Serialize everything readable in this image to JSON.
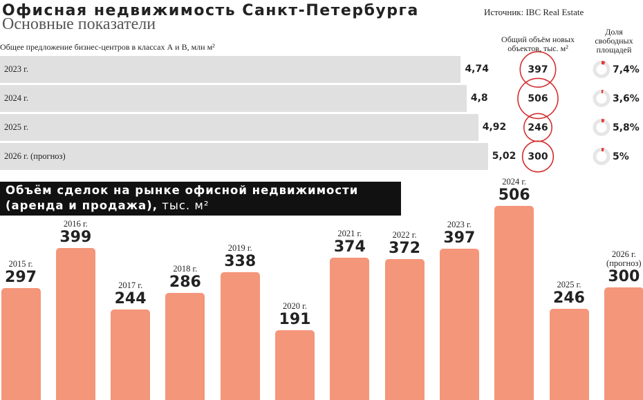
{
  "header": {
    "title": "Офисная недвижимость Санкт-Петербурга",
    "subtitle": "Основные показатели",
    "source": "Источник: IBC Real Estate"
  },
  "chart_data": [
    {
      "type": "hbar",
      "title": "Общее предложение бизнес-центров в классах А и В, млн м²",
      "categories": [
        "2023 г.",
        "2024 г.",
        "2025 г.",
        "2026 г. (прогноз)"
      ],
      "values": [
        4.74,
        4.8,
        4.92,
        5.02
      ],
      "value_labels": [
        "4,74",
        "4,8",
        "4,92",
        "5,02"
      ],
      "color": "#e0e0e0"
    },
    {
      "type": "bubble",
      "title": "Общий объём новых объектов, тыс. м²",
      "values": [
        397,
        506,
        246,
        300
      ],
      "color": "#d32f2f"
    },
    {
      "type": "donut",
      "title": "Доля свободных площадей",
      "values": [
        7.4,
        3.6,
        5.8,
        5
      ],
      "value_labels": [
        "7,4%",
        "3,6%",
        "5,8%",
        "5%"
      ],
      "color": "#e53935",
      "track_color": "#e6e6e6"
    },
    {
      "type": "bar",
      "title": "Объём сделок на рынке офисной недвижимости (аренда и продажа),",
      "unit": "тыс. м²",
      "categories": [
        "2015 г.",
        "2016 г.",
        "2017 г.",
        "2018 г.",
        "2019 г.",
        "2020 г.",
        "2021 г.",
        "2022 г.",
        "2023 г.",
        "2024 г.",
        "2025 г.",
        "2026 г. (прогноз)"
      ],
      "values": [
        297,
        399,
        244,
        286,
        338,
        191,
        374,
        372,
        397,
        506,
        246,
        300
      ],
      "color": "#f4967a"
    }
  ]
}
